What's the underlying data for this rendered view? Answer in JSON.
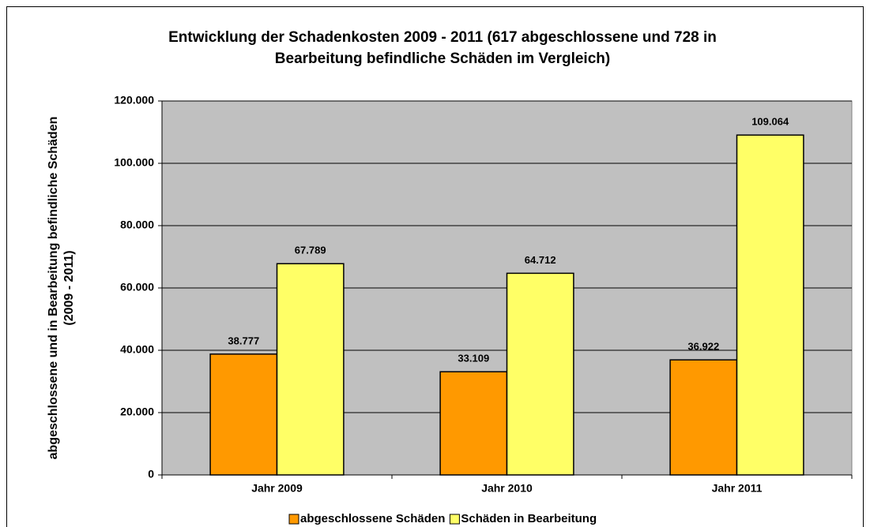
{
  "chart_data": {
    "type": "bar",
    "title": [
      "Entwicklung der Schadenkosten 2009 - 2011 (617 abgeschlossene und 728 in",
      "Bearbeitung befindliche Schäden im Vergleich)"
    ],
    "y_label": [
      "abgeschlossene und in Bearbeitung befindliche  Schäden",
      "(2009 - 2011)"
    ],
    "categories": [
      "Jahr 2009",
      "Jahr 2010",
      "Jahr 2011"
    ],
    "series": [
      {
        "name": "abgeschlossene Schäden",
        "color": "#ff9900",
        "values": [
          38777,
          33109,
          36922
        ],
        "value_labels": [
          "38.777",
          "33.109",
          "36.922"
        ]
      },
      {
        "name": "Schäden in Bearbeitung",
        "color": "#ffff66",
        "values": [
          67789,
          64712,
          109064
        ],
        "value_labels": [
          "67.789",
          "64.712",
          "109.064"
        ]
      }
    ],
    "ylim": [
      0,
      120000
    ],
    "yticks": [
      0,
      {
        "value": 20000,
        "label": "20.000"
      },
      {
        "value": 40000,
        "label": "40.000"
      },
      {
        "value": 60000,
        "label": "60.000"
      },
      {
        "value": 80000,
        "label": "80.000"
      },
      {
        "value": 100000,
        "label": "100.000"
      },
      {
        "value": 120000,
        "label": "120.000"
      }
    ],
    "grid": true,
    "legend": "bottom",
    "plot_background": "#c0c0c0"
  }
}
